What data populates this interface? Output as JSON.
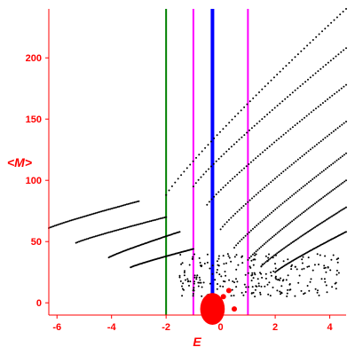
{
  "chart_data": {
    "type": "scatter",
    "xlabel": "E",
    "ylabel": "<M>",
    "xlim": [
      -6.3,
      4.6
    ],
    "ylim": [
      -10,
      240
    ],
    "xticks": [
      -6,
      -4,
      -2,
      0,
      2,
      4
    ],
    "yticks": [
      0,
      50,
      100,
      150,
      200
    ],
    "grid": false,
    "colors": {
      "axis": "#ff0000",
      "points": "#000000",
      "green_line": "#008000",
      "magenta_line": "#ff00ff",
      "blue_line": "#0000ff",
      "blob": "#ff0000"
    },
    "vertical_lines": [
      {
        "x": -2.0,
        "color": "#008000"
      },
      {
        "x": -1.0,
        "color": "#ff00ff"
      },
      {
        "x": -0.3,
        "color": "#0000ff"
      },
      {
        "x": 1.0,
        "color": "#ff00ff"
      }
    ],
    "curves": [
      {
        "x0": -6.3,
        "y0": 61,
        "x1": -3.0,
        "y1": 83
      },
      {
        "x0": -5.3,
        "y0": 49,
        "x1": -2.0,
        "y1": 70
      },
      {
        "x0": -4.1,
        "y0": 37,
        "x1": -1.5,
        "y1": 58
      },
      {
        "x0": -3.3,
        "y0": 29,
        "x1": -1.0,
        "y1": 44
      },
      {
        "x0": -2.0,
        "y0": 88,
        "x1": 4.6,
        "y1": 240
      },
      {
        "x0": -1.0,
        "y0": 95,
        "x1": 4.6,
        "y1": 208
      },
      {
        "x0": -0.5,
        "y0": 80,
        "x1": 4.6,
        "y1": 178
      },
      {
        "x0": 0.0,
        "y0": 60,
        "x1": 4.6,
        "y1": 148
      },
      {
        "x0": 0.5,
        "y0": 45,
        "x1": 4.6,
        "y1": 122
      },
      {
        "x0": 1.0,
        "y0": 35,
        "x1": 4.6,
        "y1": 100
      },
      {
        "x0": 1.5,
        "y0": 30,
        "x1": 4.6,
        "y1": 78
      },
      {
        "x0": 2.0,
        "y0": 25,
        "x1": 4.6,
        "y1": 58
      }
    ],
    "red_blob": {
      "x": -0.3,
      "y": -5,
      "rx": 0.45,
      "ry": 13
    },
    "red_dots": [
      {
        "x": 0.5,
        "y": -5
      },
      {
        "x": 0.3,
        "y": 10
      },
      {
        "x": 0.1,
        "y": 5
      }
    ]
  }
}
